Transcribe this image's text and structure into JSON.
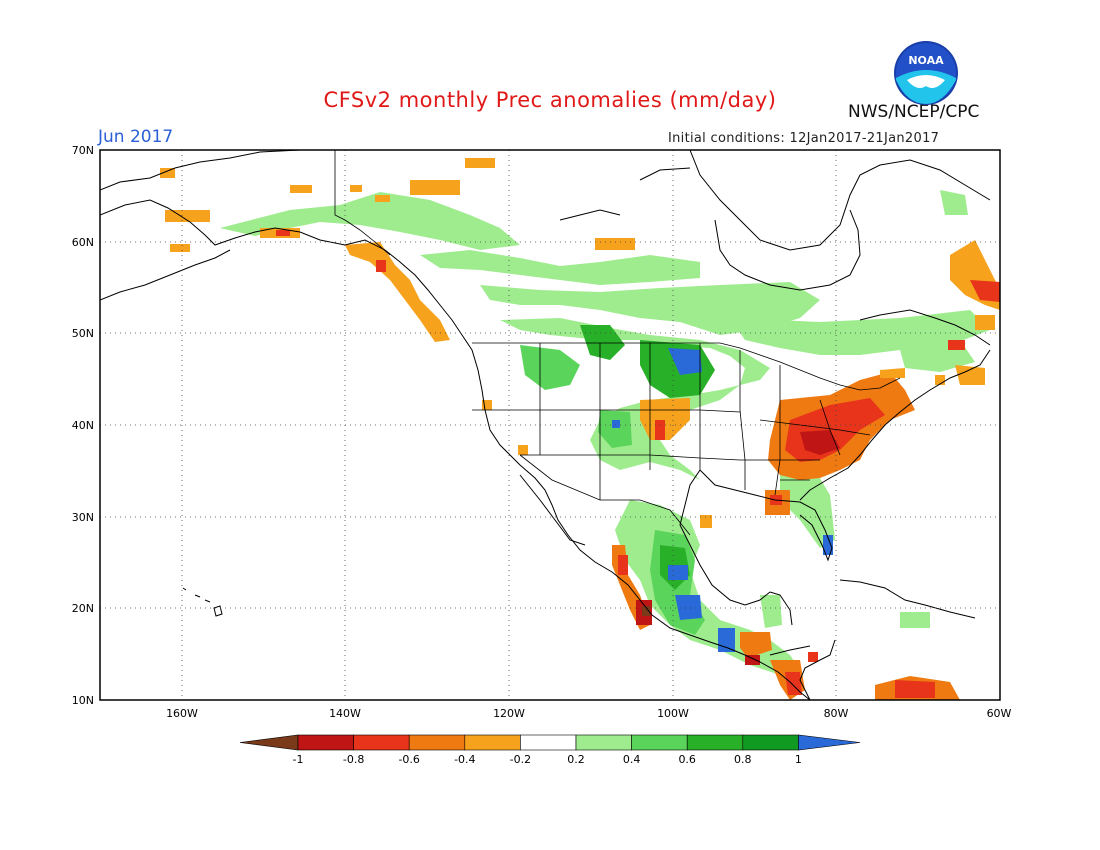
{
  "header": {
    "title": "CFSv2 monthly Prec anomalies (mm/day)",
    "month": "Jun 2017",
    "initial_conditions": "Initial conditions: 12Jan2017-21Jan2017",
    "organization": "NWS/NCEP/CPC",
    "logo_text": "NOAA"
  },
  "axes": {
    "lat_labels": [
      "70N",
      "60N",
      "50N",
      "40N",
      "30N",
      "20N",
      "10N"
    ],
    "lon_labels": [
      "160W",
      "140W",
      "120W",
      "100W",
      "80W",
      "60W"
    ],
    "lat_range": [
      10,
      70
    ],
    "lon_range": [
      -170,
      -60
    ]
  },
  "colorbar": {
    "ticks": [
      "-1",
      "-0.8",
      "-0.6",
      "-0.4",
      "-0.2",
      "0.2",
      "0.4",
      "0.6",
      "0.8",
      "1"
    ],
    "colors": [
      "#7a3a1a",
      "#c01515",
      "#e8341a",
      "#f07a12",
      "#f6a21d",
      "#ffffff",
      "#9fec8f",
      "#5ad45a",
      "#28b028",
      "#119a22",
      "#2a6ad8"
    ]
  },
  "anomaly_colors": {
    "wet_light": "#9fec8f",
    "wet_mid": "#5ad45a",
    "wet_strong": "#28b028",
    "wet_max": "#2a6ad8",
    "dry_light": "#f6a21d",
    "dry_mid": "#f07a12",
    "dry_strong": "#e8341a",
    "dry_max": "#c01515"
  }
}
